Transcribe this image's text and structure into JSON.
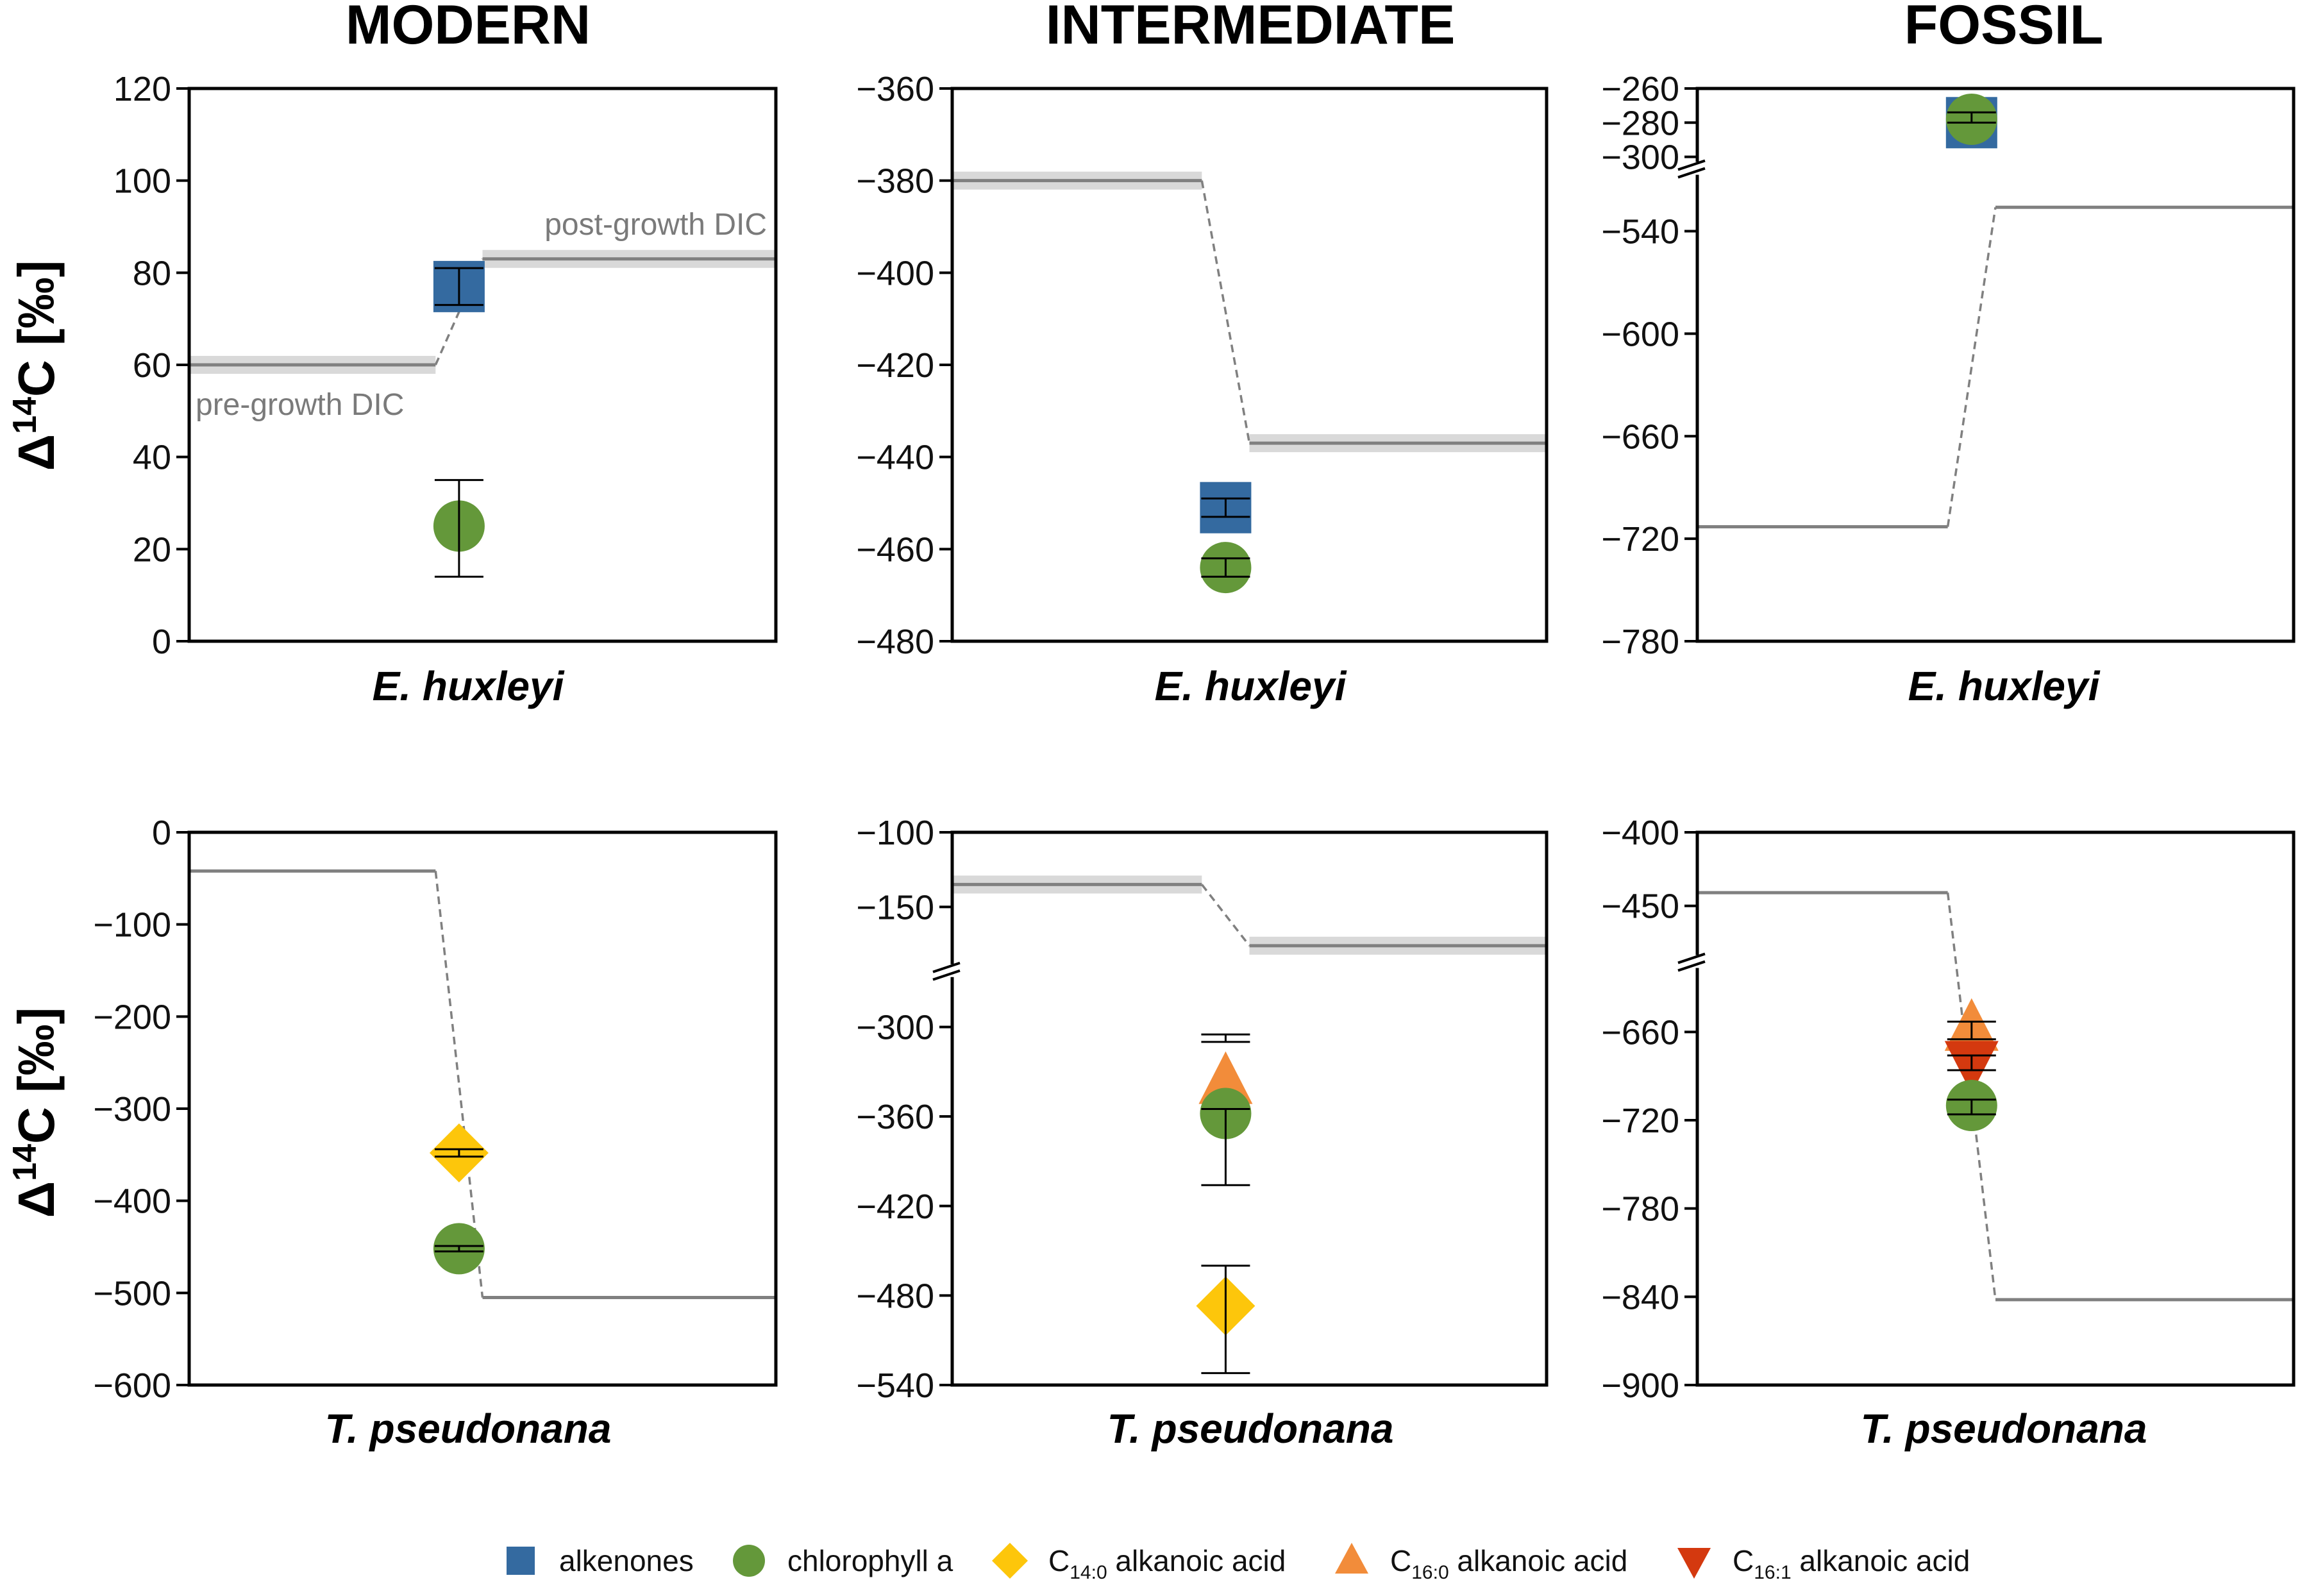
{
  "columns": [
    "MODERN",
    "INTERMEDIATE",
    "FOSSIL"
  ],
  "ylabel": {
    "prefix": "Δ",
    "sup": "14",
    "main": "C [‰]"
  },
  "colors": {
    "alkenones": "#346aa0",
    "chlorophyll": "#64983a",
    "c14": "#fdc60b",
    "c16_0": "#f28c3a",
    "c16_1": "#d4390f",
    "dic": "#808080",
    "band": "#d9d9d9"
  },
  "legend": [
    {
      "key": "alkenones",
      "shape": "square",
      "color_key": "alkenones",
      "base": "alkenones",
      "sub": "",
      "suffix": ""
    },
    {
      "key": "chlorophyll",
      "shape": "circle",
      "color_key": "chlorophyll",
      "base": "chlorophyll a",
      "sub": "",
      "suffix": ""
    },
    {
      "key": "c14",
      "shape": "diamond",
      "color_key": "c14",
      "base": "C",
      "sub": "14:0",
      "suffix": " alkanoic acid"
    },
    {
      "key": "c16_0",
      "shape": "triangle-up",
      "color_key": "c16_0",
      "base": "C",
      "sub": "16:0",
      "suffix": " alkanoic acid"
    },
    {
      "key": "c16_1",
      "shape": "triangle-down",
      "color_key": "c16_1",
      "base": "C",
      "sub": "16:1",
      "suffix": " alkanoic acid"
    }
  ],
  "chart_data": [
    {
      "type": "scatter",
      "row": 0,
      "col": 0,
      "title": "MODERN",
      "xlabel": "E. huxleyi",
      "ylabel": "Δ14C [‰]",
      "segments": [
        {
          "lo": 0,
          "hi": 120,
          "ticks": [
            0,
            20,
            40,
            60,
            80,
            100,
            120
          ]
        }
      ],
      "dic": {
        "pre": 60,
        "post": 83,
        "pre_label": "pre-growth DIC",
        "post_label": "post-growth DIC",
        "band": true
      },
      "points": [
        {
          "compound": "alkenones",
          "value": 77,
          "err_low": 73,
          "err_high": 81
        },
        {
          "compound": "chlorophyll",
          "value": 25,
          "err_low": 14,
          "err_high": 35
        }
      ]
    },
    {
      "type": "scatter",
      "row": 0,
      "col": 1,
      "title": "INTERMEDIATE",
      "xlabel": "E. huxleyi",
      "ylabel": "Δ14C [‰]",
      "segments": [
        {
          "lo": -480,
          "hi": -360,
          "ticks": [
            -480,
            -460,
            -440,
            -420,
            -400,
            -380,
            -360
          ]
        }
      ],
      "dic": {
        "pre": -380,
        "post": -437,
        "band": true
      },
      "points": [
        {
          "compound": "alkenones",
          "value": -451,
          "err_low": -453,
          "err_high": -449
        },
        {
          "compound": "chlorophyll",
          "value": -464,
          "err_low": -466,
          "err_high": -462
        }
      ]
    },
    {
      "type": "scatter",
      "row": 0,
      "col": 2,
      "title": "FOSSIL",
      "xlabel": "E. huxleyi",
      "ylabel": "Δ14C [‰]",
      "segments": [
        {
          "lo": -780,
          "hi": -510,
          "ticks": [
            -780,
            -720,
            -660,
            -600,
            -540
          ]
        },
        {
          "lo": -300,
          "hi": -260,
          "ticks": [
            -300,
            -280,
            -260
          ]
        }
      ],
      "dic": {
        "pre": -713,
        "post": -526,
        "band": false
      },
      "points": [
        {
          "compound": "alkenones",
          "value": -280,
          "err_low": -282,
          "err_high": -276
        },
        {
          "compound": "chlorophyll",
          "value": -278,
          "err_low": -280,
          "err_high": -274
        }
      ]
    },
    {
      "type": "scatter",
      "row": 1,
      "col": 0,
      "title": "MODERN",
      "xlabel": "T. pseudonana",
      "ylabel": "Δ14C [‰]",
      "segments": [
        {
          "lo": -600,
          "hi": 0,
          "ticks": [
            -600,
            -500,
            -400,
            -300,
            -200,
            -100,
            0
          ]
        }
      ],
      "dic": {
        "pre": -42,
        "post": -505,
        "band": false
      },
      "points": [
        {
          "compound": "c14",
          "value": -348,
          "err_low": -352,
          "err_high": -344
        },
        {
          "compound": "chlorophyll",
          "value": -452,
          "err_low": -455,
          "err_high": -449
        }
      ]
    },
    {
      "type": "scatter",
      "row": 1,
      "col": 1,
      "title": "INTERMEDIATE",
      "xlabel": "T. pseudonana",
      "ylabel": "Δ14C [‰]",
      "segments": [
        {
          "lo": -540,
          "hi": -270,
          "ticks": [
            -540,
            -480,
            -420,
            -360,
            -300
          ]
        },
        {
          "lo": -185,
          "hi": -100,
          "ticks": [
            -150,
            -100
          ]
        }
      ],
      "dic": {
        "pre": -135,
        "post": -176,
        "band": true
      },
      "points": [
        {
          "compound": "c16_0",
          "value": -337,
          "err_low": -310,
          "err_high": -305
        },
        {
          "compound": "chlorophyll",
          "value": -358,
          "err_low": -406,
          "err_high": -355
        },
        {
          "compound": "c14",
          "value": -487,
          "err_low": -532,
          "err_high": -460
        }
      ]
    },
    {
      "type": "scatter",
      "row": 1,
      "col": 2,
      "title": "FOSSIL",
      "xlabel": "T. pseudonana",
      "ylabel": "Δ14C [‰]",
      "segments": [
        {
          "lo": -900,
          "hi": -620,
          "ticks": [
            -900,
            -840,
            -780,
            -720,
            -660
          ]
        },
        {
          "lo": -480,
          "hi": -400,
          "ticks": [
            -450,
            -400
          ]
        }
      ],
      "dic": {
        "pre": -441,
        "post": -842,
        "band": false
      },
      "points": [
        {
          "compound": "c16_0",
          "value": -658,
          "err_low": -665,
          "err_high": -653
        },
        {
          "compound": "c16_1",
          "value": -681,
          "err_low": -686,
          "err_high": -676
        },
        {
          "compound": "chlorophyll",
          "value": -710,
          "err_low": -716,
          "err_high": -706
        }
      ]
    }
  ]
}
